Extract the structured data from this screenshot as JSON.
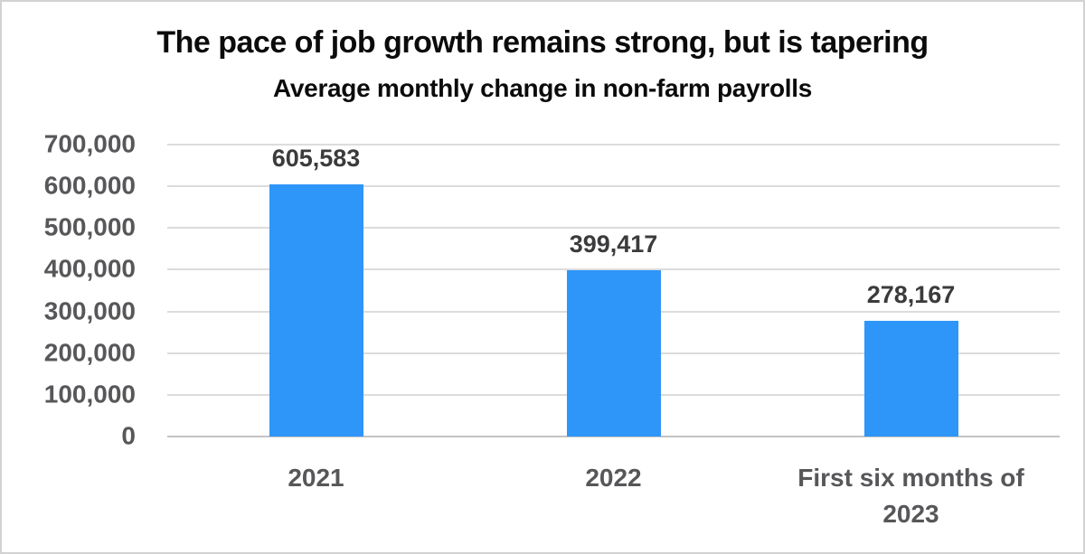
{
  "page": {
    "background_color": "#ffffff",
    "border_color": "#d2d2d2"
  },
  "chart_data": {
    "type": "bar",
    "title": "The pace of job growth remains strong, but is tapering",
    "subtitle": "Average monthly change in non-farm payrolls",
    "categories": [
      "2021",
      "2022",
      "First six months of 2023"
    ],
    "values": [
      605583,
      399417,
      278167
    ],
    "value_labels": [
      "605,583",
      "399,417",
      "278,167"
    ],
    "ylim": [
      0,
      700000
    ],
    "ytick_interval": 100000,
    "yticks": [
      "700,000",
      "600,000",
      "500,000",
      "400,000",
      "300,000",
      "200,000",
      "100,000",
      "0"
    ],
    "grid": "horizontal",
    "legend_position": "none",
    "bar_color": "#2e96f9",
    "title_color": "#0b0b0b",
    "data_label_color": "#3b3b3d",
    "axis_label_color": "#57575a",
    "gridline_color": "#dcdcdc",
    "zero_line_color": "#c3c3c3"
  }
}
